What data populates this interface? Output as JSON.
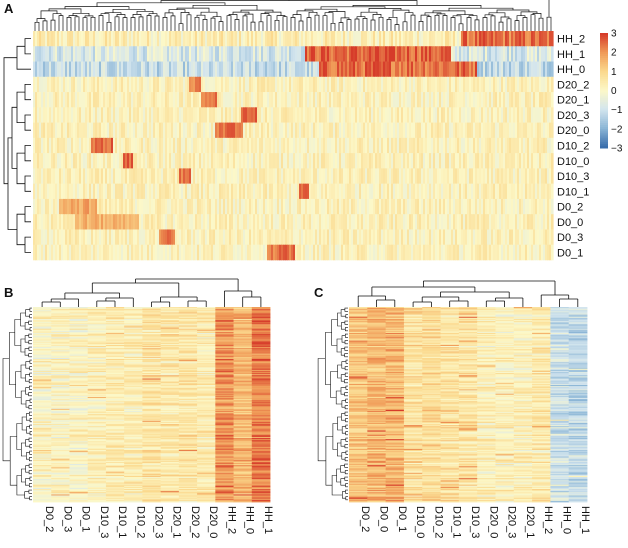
{
  "chart_data": [
    {
      "panel": "A",
      "type": "heatmap",
      "title": "",
      "rows": [
        "HH_2",
        "HH_1",
        "HH_0",
        "D20_2",
        "D20_1",
        "D20_3",
        "D20_0",
        "D10_2",
        "D10_0",
        "D10_3",
        "D10_1",
        "D0_2",
        "D0_0",
        "D0_3",
        "D0_1"
      ],
      "n_columns": 260,
      "column_dendrogram": true,
      "row_dendrogram": true,
      "color_scale": {
        "min": -3,
        "max": 3,
        "ticks": [
          3,
          2,
          1,
          0,
          -1,
          -2,
          -3
        ],
        "tick_labels": [
          "3",
          "2",
          "1",
          "0",
          "−1",
          "−2",
          "−3"
        ],
        "colors": [
          "#3a6eab",
          "#8cb6d6",
          "#d3e5ee",
          "#fcf8c8",
          "#fbd98e",
          "#f09b58",
          "#d63b2a"
        ]
      },
      "row_profiles": [
        {
          "row": "HH_2",
          "high_from": 0.82,
          "high_to": 1.0,
          "high_value": 2.4,
          "low_value": 0.3
        },
        {
          "row": "HH_1",
          "high_from": 0.52,
          "high_to": 0.8,
          "high_value": 2.6,
          "low_value": -0.8
        },
        {
          "row": "HH_0",
          "high_from": 0.55,
          "high_to": 0.85,
          "high_value": 2.5,
          "low_value": -1.2
        },
        {
          "row": "D20_2",
          "blocks": [
            [
              0.3,
              0.32,
              2.2
            ]
          ]
        },
        {
          "row": "D20_1",
          "blocks": [
            [
              0.32,
              0.35,
              2.3
            ]
          ]
        },
        {
          "row": "D20_3",
          "blocks": [
            [
              0.4,
              0.43,
              2.6
            ]
          ]
        },
        {
          "row": "D20_0",
          "blocks": [
            [
              0.35,
              0.4,
              2.4
            ]
          ]
        },
        {
          "row": "D10_2",
          "blocks": [
            [
              0.11,
              0.15,
              2.5
            ]
          ]
        },
        {
          "row": "D10_0",
          "blocks": [
            [
              0.17,
              0.19,
              2.5
            ]
          ]
        },
        {
          "row": "D10_3",
          "blocks": [
            [
              0.28,
              0.3,
              2.4
            ]
          ]
        },
        {
          "row": "D10_1",
          "blocks": [
            [
              0.51,
              0.53,
              2.6
            ]
          ]
        },
        {
          "row": "D0_2",
          "blocks": [
            [
              0.05,
              0.12,
              1.8
            ]
          ]
        },
        {
          "row": "D0_0",
          "blocks": [
            [
              0.08,
              0.2,
              1.6
            ]
          ]
        },
        {
          "row": "D0_3",
          "blocks": [
            [
              0.24,
              0.27,
              2.3
            ]
          ]
        },
        {
          "row": "D0_1",
          "blocks": [
            [
              0.45,
              0.5,
              2.4
            ]
          ]
        }
      ]
    },
    {
      "panel": "B",
      "type": "heatmap",
      "columns": [
        "D0_2",
        "D0_3",
        "D0_1",
        "D10_3",
        "D10_1",
        "D10_2",
        "D20_3",
        "D20_1",
        "D20_2",
        "D20_0",
        "HH_2",
        "HH_0",
        "HH_1"
      ],
      "n_rows": 180,
      "column_dendrogram": true,
      "row_dendrogram": true,
      "column_means": [
        0.1,
        0.05,
        0.1,
        0.3,
        0.4,
        0.3,
        0.6,
        0.5,
        0.6,
        0.4,
        2.0,
        1.5,
        2.3
      ]
    },
    {
      "panel": "C",
      "type": "heatmap",
      "columns": [
        "D0_2",
        "D0_0",
        "D0_1",
        "D10_0",
        "D10_2",
        "D10_1",
        "D10_3",
        "D20_0",
        "D20_3",
        "D20_1",
        "HH_2",
        "HH_0",
        "HH_1"
      ],
      "n_rows": 180,
      "column_dendrogram": true,
      "row_dendrogram": true,
      "column_means": [
        1.3,
        1.5,
        1.5,
        0.7,
        0.8,
        0.6,
        0.6,
        0.2,
        0.2,
        0.2,
        0.4,
        -1.2,
        -1.3
      ]
    }
  ]
}
